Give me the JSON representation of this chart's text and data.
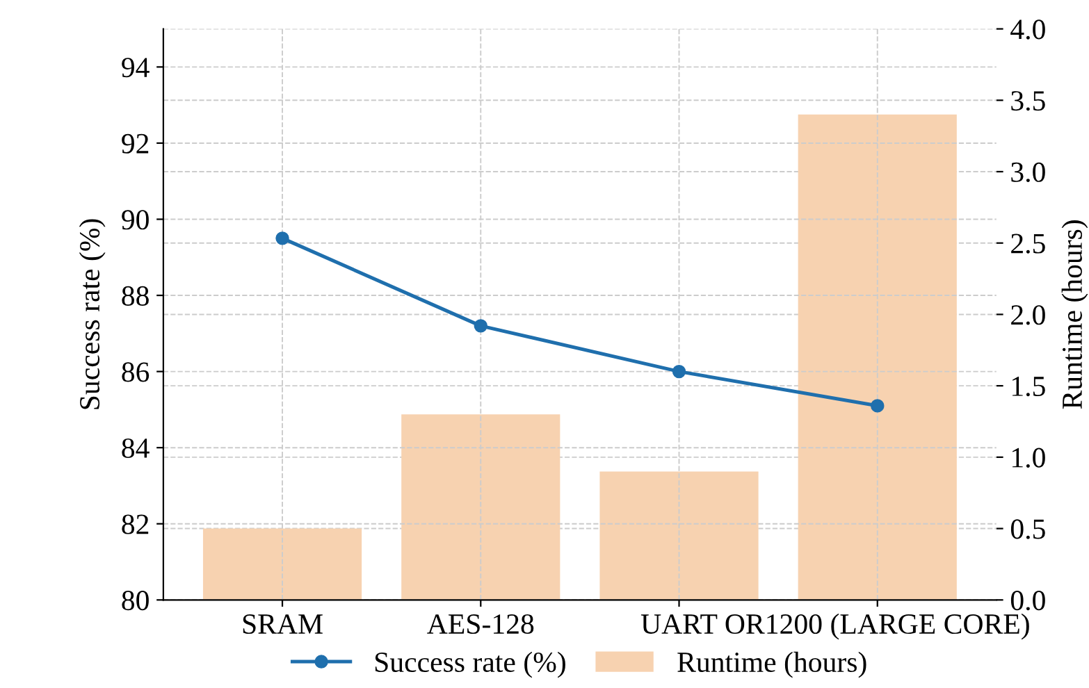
{
  "chart_data": {
    "type": "bar",
    "categories": [
      "SRAM",
      "AES-128",
      "UART",
      "OR1200 (LARGE CORE)"
    ],
    "ylabel": "Success rate (%)",
    "y2label": "Runtime (hours)",
    "series": [
      {
        "name": "Success rate (%)",
        "type": "line",
        "color": "#1f6fad",
        "values": [
          89.5,
          87.2,
          86.0,
          85.1
        ]
      },
      {
        "name": "Runtime (hours)",
        "axis": "y2",
        "color": "#f7d2b0",
        "values": [
          0.5,
          1.3,
          0.9,
          3.4
        ]
      }
    ],
    "ylim": [
      80,
      95
    ],
    "yticks": [
      80,
      82,
      84,
      86,
      88,
      90,
      92,
      94
    ],
    "y2lim": [
      0,
      4
    ],
    "y2ticks": [
      {
        "value": 0,
        "label": "0.0"
      },
      {
        "value": 0.5,
        "label": "0.5"
      },
      {
        "value": 1,
        "label": "1.0"
      },
      {
        "value": 1.5,
        "label": "1.5"
      },
      {
        "value": 2,
        "label": "2.0"
      },
      {
        "value": 2.5,
        "label": "2.5"
      },
      {
        "value": 3,
        "label": "3.0"
      },
      {
        "value": 3.5,
        "label": "3.5"
      },
      {
        "value": 4,
        "label": "4.0"
      }
    ],
    "grid": true,
    "legend": "bottom",
    "marker": "circle",
    "line_style": "solid"
  }
}
